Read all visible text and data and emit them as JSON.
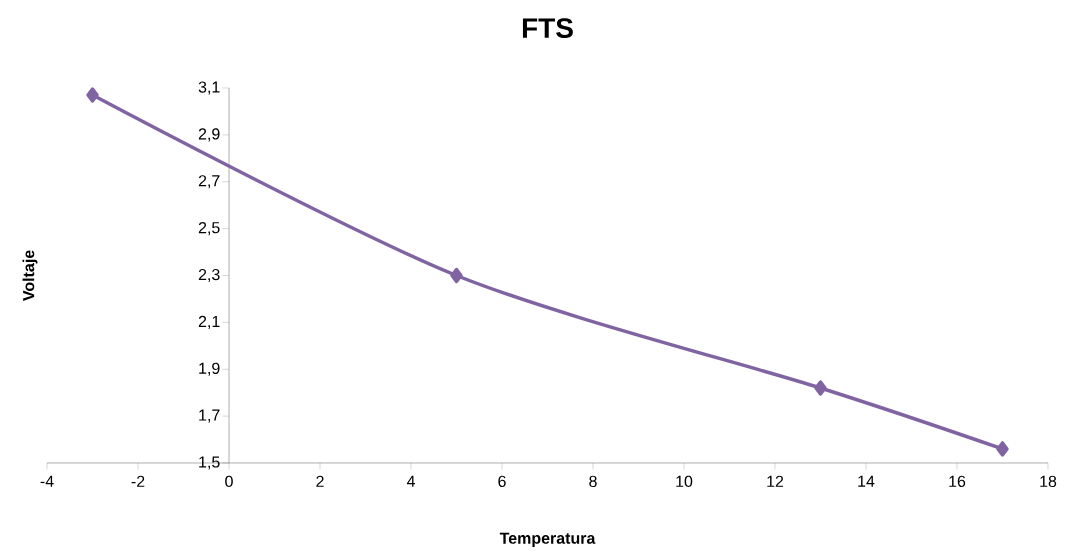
{
  "chart_data": {
    "type": "line",
    "title": "FTS",
    "xlabel": "Temperatura",
    "ylabel": "Voltaje",
    "x": [
      -3,
      5,
      13,
      17
    ],
    "series": [
      {
        "color": "#8064a2",
        "values": [
          3.07,
          2.3,
          1.82,
          1.56
        ]
      }
    ],
    "xlim": [
      -4,
      18
    ],
    "ylim": [
      1.5,
      3.1
    ],
    "xticks": [
      -4,
      -2,
      0,
      2,
      4,
      6,
      8,
      10,
      12,
      14,
      16,
      18
    ],
    "yticks": [
      {
        "value": 1.5,
        "label": "1,5"
      },
      {
        "value": 1.7,
        "label": "1,7"
      },
      {
        "value": 1.9,
        "label": "1,9"
      },
      {
        "value": 2.1,
        "label": "2,1"
      },
      {
        "value": 2.3,
        "label": "2,3"
      },
      {
        "value": 2.5,
        "label": "2,5"
      },
      {
        "value": 2.7,
        "label": "2,7"
      },
      {
        "value": 2.9,
        "label": "2,9"
      },
      {
        "value": 3.1,
        "label": "3,1"
      }
    ],
    "marker": "diamond",
    "line_style": "solid"
  }
}
